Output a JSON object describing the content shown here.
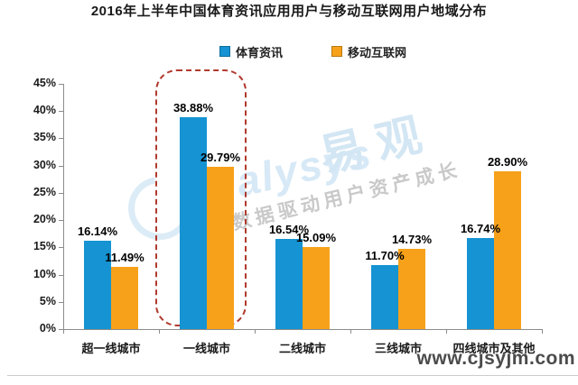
{
  "title": "2016年上半年中国体育资讯应用用户与移动互联网用户地域分布",
  "chart_data": {
    "type": "bar",
    "title": "2016年上半年中国体育资讯应用用户与移动互联网用户地域分布",
    "categories": [
      "超一线城市",
      "一线城市",
      "二线城市",
      "三线城市",
      "四线城市及其他"
    ],
    "series": [
      {
        "name": "体育资讯",
        "color": "#1593d2",
        "values": [
          16.14,
          38.88,
          16.54,
          11.7,
          16.74
        ]
      },
      {
        "name": "移动互联网",
        "color": "#f7a11a",
        "values": [
          11.49,
          29.79,
          15.09,
          14.73,
          28.9
        ]
      }
    ],
    "value_labels": [
      [
        "16.14%",
        "38.88%",
        "16.54%",
        "11.70%",
        "16.74%"
      ],
      [
        "11.49%",
        "29.79%",
        "15.09%",
        "14.73%",
        "28.90%"
      ]
    ],
    "xlabel": "",
    "ylabel": "",
    "ylim": [
      0,
      45
    ],
    "ytick_step": 5,
    "yticks": [
      "0%",
      "5%",
      "10%",
      "15%",
      "20%",
      "25%",
      "30%",
      "35%",
      "40%",
      "45%"
    ],
    "grid": false,
    "legend_position": "top",
    "highlight": {
      "category": "一线城市",
      "style": "dark-red dashed rounded box"
    }
  },
  "legend": {
    "items": [
      {
        "label": "体育资讯",
        "color": "#1593d2"
      },
      {
        "label": "移动互联网",
        "color": "#f7a11a"
      }
    ]
  },
  "watermark": {
    "brand_text": "Analysys",
    "logo_text": "易观",
    "slogan": "大数据驱动用户资产成长",
    "blue": "#d3e6f4",
    "grey": "#c9c9c9"
  },
  "footer": {
    "url": "www.cjsyjm.com"
  },
  "colors": {
    "bar_blue": "#1593d2",
    "bar_orange": "#f7a11a",
    "highlight_red": "#b03a2e",
    "axis_grey": "#8c8c8c"
  }
}
